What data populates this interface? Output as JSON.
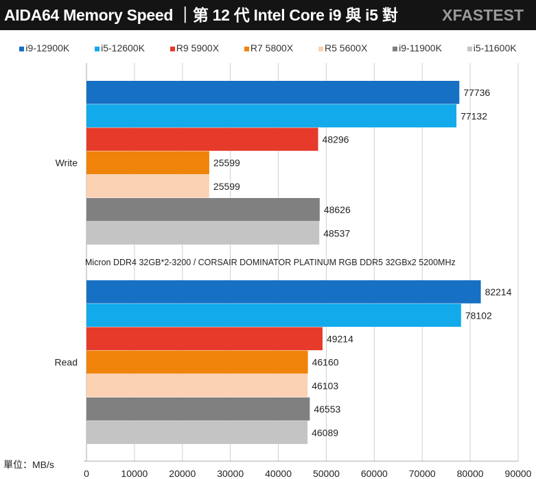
{
  "header": {
    "title": "AIDA64 Memory  Speed ｜第 12 代 Intel Core i9 與 i5 對",
    "brand": "XFASTEST"
  },
  "chart_data": {
    "type": "bar",
    "orientation": "horizontal",
    "title": "AIDA64 Memory  Speed ｜第 12 代 Intel Core i9 與 i5 對",
    "categories": [
      "Write",
      "Read"
    ],
    "series": [
      {
        "name": "i9-12900K",
        "color": "#1670c4",
        "values": [
          77736,
          82214
        ]
      },
      {
        "name": "i5-12600K",
        "color": "#12aaea",
        "values": [
          77132,
          78102
        ]
      },
      {
        "name": "R9 5900X",
        "color": "#e63b2a",
        "values": [
          48296,
          49214
        ]
      },
      {
        "name": "R7 5800X",
        "color": "#f0830a",
        "values": [
          25599,
          46160
        ]
      },
      {
        "name": "R5 5600X",
        "color": "#fbd2b4",
        "values": [
          25599,
          46103
        ]
      },
      {
        "name": "i9-11900K",
        "color": "#808080",
        "values": [
          48626,
          46553
        ]
      },
      {
        "name": "i5-11600K",
        "color": "#c4c4c4",
        "values": [
          48537,
          46089
        ]
      }
    ],
    "xlim": [
      0,
      90000
    ],
    "xticks": [
      "0",
      "10000",
      "20000",
      "30000",
      "40000",
      "50000",
      "60000",
      "70000",
      "80000",
      "90000"
    ],
    "annotation": "Micron DDR4 32GB*2-3200 / CORSAIR DOMINATOR PLATINUM RGB DDR5 32GBx2 5200MHz",
    "unit_label": "單位：MB/s",
    "grid": true,
    "legend_position": "top"
  }
}
